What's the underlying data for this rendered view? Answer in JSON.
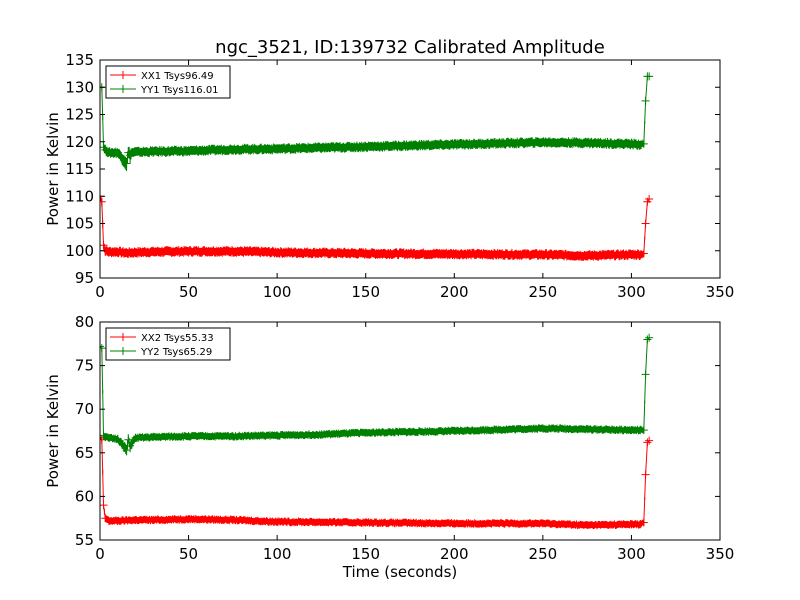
{
  "figure": {
    "title": "ngc_3521, ID:139732 Calibrated Amplitude"
  },
  "colors": {
    "xx": "#ff0000",
    "yy": "#008000",
    "axes": "#000000"
  },
  "chart_data": [
    {
      "type": "line",
      "title": "ngc_3521, ID:139732 Calibrated Amplitude",
      "xlabel": "",
      "ylabel": "Power in Kelvin",
      "xlim": [
        0,
        350
      ],
      "ylim": [
        95,
        135
      ],
      "xticks": [
        "0",
        "50",
        "100",
        "150",
        "200",
        "250",
        "300",
        "350"
      ],
      "yticks": [
        "95",
        "100",
        "105",
        "110",
        "115",
        "120",
        "125",
        "130",
        "135"
      ],
      "legend_position": "top-left",
      "grid": false,
      "series": [
        {
          "name": "XX1 Tsys96.49",
          "color": "#ff0000",
          "x": [
            0,
            1,
            2,
            3,
            5,
            10,
            15,
            20,
            30,
            50,
            75,
            100,
            150,
            200,
            250,
            275,
            300,
            305,
            307,
            308,
            309,
            310
          ],
          "y": [
            110,
            109,
            101,
            100,
            99.8,
            99.8,
            99.6,
            99.7,
            99.8,
            99.9,
            99.9,
            99.7,
            99.5,
            99.4,
            99.3,
            99.1,
            99.3,
            99.3,
            99.5,
            105,
            109,
            109.5
          ],
          "errors": [
            0,
            0.8,
            0.8,
            0.8,
            0.8,
            0.8,
            0.8,
            0.8,
            0.8,
            0.8,
            0.8,
            0.8,
            0.8,
            0.8,
            0.8,
            0.8,
            0.8,
            0.8,
            0.5,
            0,
            0,
            0
          ]
        },
        {
          "name": "YY1 Tsys116.01",
          "color": "#008000",
          "x": [
            0,
            1,
            2,
            3,
            5,
            10,
            15,
            16,
            17,
            18,
            20,
            30,
            50,
            75,
            100,
            125,
            150,
            200,
            250,
            275,
            300,
            305,
            307,
            308,
            309,
            310
          ],
          "y": [
            130,
            130,
            119,
            118.5,
            118,
            118,
            116,
            118,
            117.5,
            118,
            118.1,
            118.2,
            118.3,
            118.6,
            118.7,
            118.9,
            119.1,
            119.5,
            119.9,
            119.8,
            119.6,
            119.5,
            119.6,
            127.5,
            132,
            132
          ],
          "errors": [
            0,
            0,
            0.8,
            0.8,
            0.8,
            0.8,
            1.2,
            1.0,
            1.2,
            0.8,
            0.8,
            0.8,
            0.8,
            0.8,
            0.8,
            0.8,
            0.8,
            0.8,
            0.8,
            0.8,
            0.8,
            0.8,
            0.5,
            0,
            0,
            0
          ]
        }
      ]
    },
    {
      "type": "line",
      "title": "",
      "xlabel": "Time (seconds)",
      "ylabel": "Power in Kelvin",
      "xlim": [
        0,
        350
      ],
      "ylim": [
        55,
        80
      ],
      "xticks": [
        "0",
        "50",
        "100",
        "150",
        "200",
        "250",
        "300",
        "350"
      ],
      "yticks": [
        "55",
        "60",
        "65",
        "70",
        "75",
        "80"
      ],
      "legend_position": "top-left",
      "grid": false,
      "series": [
        {
          "name": "XX2 Tsys55.33",
          "color": "#ff0000",
          "x": [
            0,
            1,
            2,
            3,
            5,
            10,
            20,
            30,
            50,
            75,
            100,
            150,
            200,
            250,
            275,
            300,
            305,
            307,
            308,
            309,
            310
          ],
          "y": [
            66.8,
            66.5,
            59,
            57.5,
            57.2,
            57.2,
            57.3,
            57.3,
            57.4,
            57.3,
            57.1,
            57.0,
            56.9,
            56.9,
            56.7,
            56.8,
            56.8,
            57.0,
            62.5,
            66.2,
            66.4
          ],
          "errors": [
            0,
            0.3,
            0.3,
            0.4,
            0.4,
            0.4,
            0.4,
            0.4,
            0.4,
            0.4,
            0.4,
            0.4,
            0.4,
            0.4,
            0.4,
            0.4,
            0.4,
            0.3,
            0,
            0,
            0
          ]
        },
        {
          "name": "YY2 Tsys65.29",
          "color": "#008000",
          "x": [
            0,
            1,
            2,
            3,
            5,
            10,
            15,
            16,
            17,
            20,
            30,
            50,
            75,
            100,
            125,
            150,
            175,
            200,
            250,
            275,
            300,
            305,
            307,
            308,
            309,
            310
          ],
          "y": [
            77.2,
            77,
            67,
            66.8,
            66.7,
            66.6,
            65.3,
            66.5,
            65.8,
            66.7,
            66.8,
            66.9,
            66.9,
            67.0,
            67.1,
            67.3,
            67.4,
            67.5,
            67.8,
            67.7,
            67.6,
            67.6,
            67.6,
            74,
            78,
            78.2
          ],
          "errors": [
            0,
            0,
            0.4,
            0.4,
            0.4,
            0.4,
            0.6,
            0.5,
            0.6,
            0.4,
            0.4,
            0.4,
            0.4,
            0.4,
            0.4,
            0.4,
            0.4,
            0.4,
            0.4,
            0.4,
            0.4,
            0.4,
            0.3,
            0,
            0,
            0
          ]
        }
      ]
    }
  ]
}
